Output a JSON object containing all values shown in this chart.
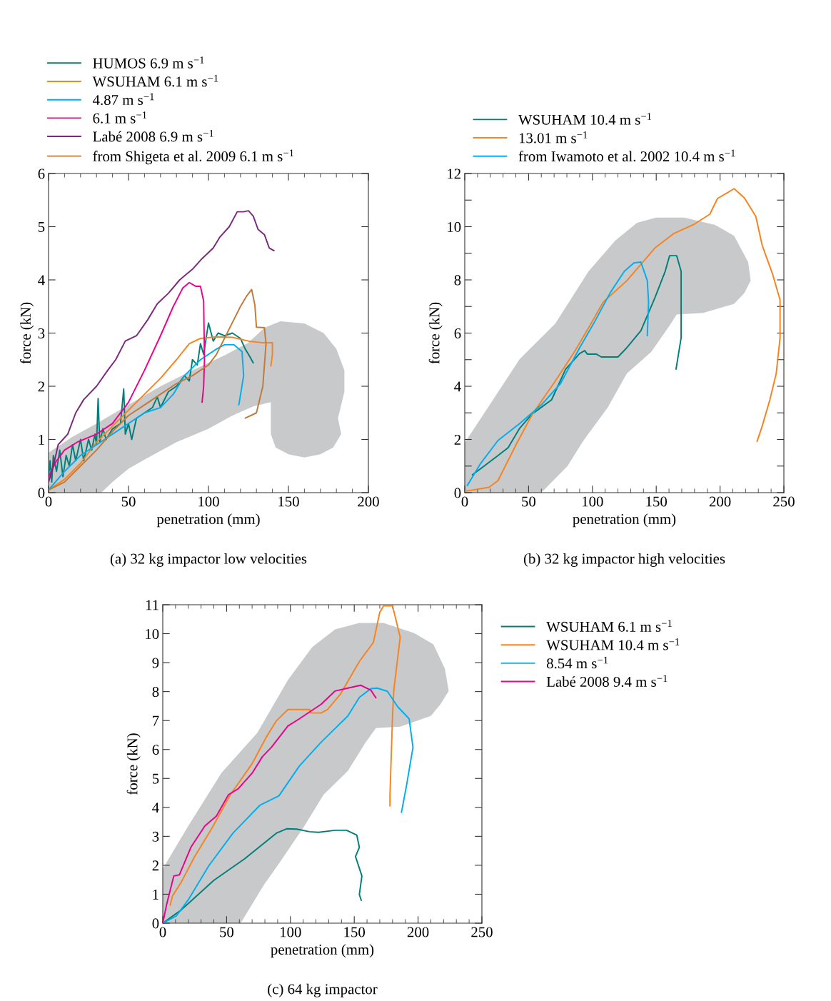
{
  "chart_data": [
    {
      "type": "line",
      "xlabel": "penetration (mm)",
      "ylabel": "force (kN)",
      "xlim": [
        0,
        200
      ],
      "ylim": [
        0,
        6
      ],
      "xticks": [
        0,
        50,
        100,
        150,
        200
      ],
      "yticks": [
        0,
        1,
        2,
        3,
        4,
        5,
        6
      ],
      "grid": false,
      "legend": "top",
      "annotations": [
        "(a) 32 kg impactor low velocities"
      ],
      "series": [
        {
          "type": "area",
          "color": "#c8c9cb",
          "x": [
            0,
            33,
            40,
            50,
            60,
            80,
            100,
            115,
            128,
            139,
            139,
            142,
            150,
            160,
            170,
            178,
            183,
            181,
            185,
            185,
            180,
            172,
            160,
            145,
            135,
            125,
            110,
            90,
            70,
            50,
            30,
            15,
            0
          ],
          "values": [
            0,
            0,
            0.2,
            0.45,
            0.62,
            0.95,
            1.2,
            1.45,
            1.62,
            1.7,
            1.1,
            0.85,
            0.72,
            0.66,
            0.72,
            0.85,
            1.1,
            1.4,
            1.9,
            2.3,
            2.7,
            3.0,
            3.18,
            3.22,
            3.1,
            2.82,
            2.58,
            2.3,
            2.0,
            1.65,
            1.3,
            1.05,
            0.75
          ]
        },
        {
          "name": "HUMOS 6.9 m s$^{−1}$",
          "color": "#007f7a",
          "x": [
            0,
            1,
            2,
            3,
            5,
            7,
            9,
            11,
            13,
            15,
            17,
            20,
            22,
            25,
            27,
            29,
            30,
            31,
            32,
            34,
            36,
            40,
            45,
            47,
            48,
            50,
            52,
            55,
            60,
            65,
            68,
            70,
            75,
            80,
            85,
            88,
            90,
            93,
            95,
            97,
            100,
            103,
            106,
            110,
            115,
            120,
            123,
            126,
            128
          ],
          "values": [
            0.3,
            0.6,
            0.2,
            0.7,
            0.4,
            0.8,
            0.3,
            0.7,
            0.5,
            0.9,
            0.6,
            1.0,
            0.6,
            1.0,
            0.8,
            1.1,
            0.9,
            1.77,
            0.95,
            1.2,
            1.0,
            1.2,
            1.3,
            1.95,
            1.1,
            1.3,
            1.0,
            1.4,
            1.5,
            1.6,
            1.8,
            1.6,
            1.9,
            2.0,
            2.2,
            2.1,
            2.5,
            2.4,
            2.8,
            2.6,
            3.19,
            2.85,
            3.0,
            2.95,
            3.0,
            2.9,
            2.7,
            2.55,
            2.44
          ]
        },
        {
          "name": "WSUHAM 6.1 m s$^{−1}$",
          "color": "#f7821e",
          "x": [
            0,
            10,
            20,
            30,
            40,
            50,
            60,
            70,
            80,
            88,
            95,
            105,
            115,
            125,
            133,
            140,
            140,
            139
          ],
          "values": [
            0.05,
            0.25,
            0.55,
            0.95,
            1.25,
            1.55,
            1.85,
            2.15,
            2.5,
            2.8,
            2.9,
            2.93,
            2.92,
            2.85,
            2.82,
            2.82,
            2.6,
            2.38
          ]
        },
        {
          "name": "4.87 m s$^{−1}$",
          "color": "#00aeef",
          "x": [
            0,
            10,
            20,
            30,
            45,
            60,
            70,
            78,
            85,
            95,
            105,
            110,
            116,
            121,
            122,
            119
          ],
          "values": [
            0.05,
            0.4,
            0.7,
            0.9,
            1.2,
            1.5,
            1.6,
            1.85,
            2.2,
            2.5,
            2.7,
            2.78,
            2.78,
            2.65,
            2.2,
            1.65
          ]
        },
        {
          "name": "6.1 m s$^{−1}$",
          "color": "#ec008c",
          "x": [
            0,
            5,
            10,
            18,
            30,
            40,
            50,
            60,
            70,
            78,
            84,
            88,
            92,
            95,
            97,
            97.5,
            97,
            96
          ],
          "values": [
            0.3,
            0.6,
            0.8,
            0.95,
            1.1,
            1.3,
            1.7,
            2.3,
            2.95,
            3.5,
            3.85,
            3.95,
            3.88,
            3.88,
            3.6,
            2.5,
            2.0,
            1.7
          ]
        },
        {
          "name": "Labé 2008 6.9 m s$^{−1}$",
          "color": "#7a2a7a",
          "x": [
            0,
            3,
            6,
            9,
            12,
            17,
            22,
            30,
            37,
            42,
            48,
            55,
            62,
            68,
            75,
            82,
            90,
            96,
            103,
            107,
            113,
            118,
            122,
            125,
            128,
            131,
            135,
            138,
            141
          ],
          "values": [
            0.2,
            0.5,
            0.9,
            1.0,
            1.1,
            1.5,
            1.75,
            2.0,
            2.3,
            2.5,
            2.85,
            2.95,
            3.25,
            3.55,
            3.75,
            4.0,
            4.2,
            4.4,
            4.6,
            4.8,
            5.0,
            5.28,
            5.28,
            5.3,
            5.2,
            4.95,
            4.85,
            4.6,
            4.55
          ]
        },
        {
          "name": "from Shigeta et al. 2009 6.1 m s$^{−1}$",
          "color": "#c07a3a",
          "x": [
            0,
            10,
            20,
            30,
            40,
            50,
            60,
            70,
            80,
            90,
            100,
            105,
            110,
            115,
            120,
            124,
            127,
            129,
            130,
            135,
            136,
            134,
            130,
            123
          ],
          "values": [
            0.05,
            0.2,
            0.5,
            0.8,
            1.15,
            1.45,
            1.65,
            1.85,
            2.05,
            2.2,
            2.4,
            2.6,
            2.9,
            3.2,
            3.5,
            3.7,
            3.82,
            3.53,
            3.11,
            3.1,
            2.8,
            2.0,
            1.5,
            1.4
          ]
        }
      ]
    },
    {
      "type": "line",
      "xlabel": "penetration (mm)",
      "ylabel": "force (kN)",
      "xlim": [
        0,
        250
      ],
      "ylim": [
        0,
        12
      ],
      "xticks": [
        0,
        50,
        100,
        150,
        200,
        250
      ],
      "yticks": [
        0,
        {
          "value": 1,
          "label": null
        },
        2,
        {
          "value": 3,
          "label": null
        },
        4,
        {
          "value": 5,
          "label": null
        },
        6,
        {
          "value": 7,
          "label": null
        },
        8,
        {
          "value": 9,
          "label": null
        },
        10,
        {
          "value": 11,
          "label": null
        },
        12
      ],
      "grid": false,
      "legend": "top",
      "annotations": [
        "(b) 32 kg impactor high velocities"
      ],
      "series": [
        {
          "type": "area",
          "color": "#c8c9cb",
          "x": [
            0,
            60,
            80.5,
            93,
            112,
            127,
            146,
            160,
            166,
            187,
            211,
            219,
            224,
            222,
            211,
            196,
            172,
            150,
            135,
            118,
            97,
            71,
            43,
            21,
            0
          ],
          "values": [
            0,
            0,
            1.0,
            1.96,
            3.2,
            4.48,
            5.29,
            6.25,
            6.7,
            6.76,
            7.1,
            7.5,
            7.97,
            8.67,
            9.66,
            10.07,
            10.34,
            10.34,
            10.15,
            9.48,
            8.32,
            6.36,
            5.02,
            3.41,
            1.88
          ]
        },
        {
          "name": "WSUHAM 10.4 m s$^{−1}$",
          "color": "#007f7a",
          "x": [
            6,
            13.5,
            24.6,
            34,
            43,
            52.6,
            68,
            79,
            90,
            94,
            96,
            103,
            107,
            120,
            127,
            138,
            149,
            157,
            160.5,
            166,
            169.5,
            169.5,
            165.5
          ],
          "values": [
            0.67,
            0.94,
            1.34,
            1.69,
            2.42,
            2.95,
            3.49,
            4.64,
            5.23,
            5.34,
            5.21,
            5.21,
            5.1,
            5.1,
            5.45,
            6.09,
            7.33,
            8.32,
            8.91,
            8.91,
            8.32,
            5.82,
            4.64
          ]
        },
        {
          "name": "13.01 m s$^{−1}$",
          "color": "#f7821e",
          "x": [
            0,
            19,
            26,
            41,
            53,
            71,
            86,
            99,
            108.5,
            127,
            149,
            164,
            180,
            192,
            198,
            211,
            219,
            228,
            233,
            241,
            247,
            247,
            244,
            239,
            233,
            229
          ],
          "values": [
            0.05,
            0.2,
            0.45,
            1.88,
            2.95,
            4.2,
            5.3,
            6.36,
            7.17,
            7.97,
            9.2,
            9.75,
            10.1,
            10.47,
            11.06,
            11.43,
            11.09,
            10.39,
            9.3,
            8.24,
            7.25,
            5.82,
            4.48,
            3.49,
            2.5,
            1.93
          ]
        },
        {
          "name": "from Iwamoto et al. 2002 10.4 m s$^{−1}$",
          "color": "#00aeef",
          "x": [
            2,
            12,
            26,
            43,
            60,
            75,
            90,
            101,
            114,
            125,
            132.5,
            138,
            143,
            144,
            143
          ],
          "values": [
            0.27,
            1.07,
            1.96,
            2.6,
            3.3,
            4.1,
            5.45,
            6.36,
            7.52,
            8.32,
            8.64,
            8.67,
            7.97,
            7.17,
            5.9
          ]
        }
      ]
    },
    {
      "type": "line",
      "xlabel": "penetration (mm)",
      "ylabel": "force (kN)",
      "xlim": [
        0,
        250
      ],
      "ylim": [
        0,
        11
      ],
      "xticks": [
        0,
        50,
        100,
        150,
        200,
        250
      ],
      "yticks": [
        0,
        1,
        2,
        3,
        4,
        5,
        6,
        7,
        8,
        9,
        10,
        11
      ],
      "grid": false,
      "legend": "right",
      "annotations": [
        "(c) 64 kg impactor"
      ],
      "series": [
        {
          "type": "area",
          "color": "#c8c9cb",
          "x": [
            0,
            61,
            79,
            92,
            111,
            126,
            145,
            159,
            167,
            186,
            210,
            217.5,
            224,
            221,
            212,
            197,
            173,
            154,
            135,
            117,
            98,
            74,
            46,
            20,
            0
          ],
          "values": [
            0,
            0,
            1.31,
            2.12,
            3.36,
            4.44,
            5.26,
            6.25,
            6.74,
            6.79,
            7.16,
            7.56,
            8.02,
            8.79,
            9.63,
            10.02,
            10.37,
            10.37,
            10.15,
            9.53,
            8.4,
            6.57,
            5.19,
            3.36,
            1.88
          ]
        },
        {
          "name": "WSUHAM 6.1 m s$^{−1}$",
          "color": "#007f7a",
          "x": [
            0,
            14,
            40,
            64,
            89,
            97,
            105,
            115,
            122,
            135,
            144,
            152,
            154,
            151,
            156,
            154,
            155.5
          ],
          "values": [
            0,
            0.44,
            1.48,
            2.22,
            3.11,
            3.26,
            3.25,
            3.16,
            3.14,
            3.21,
            3.21,
            3.04,
            2.62,
            2.3,
            1.63,
            0.99,
            0.79
          ]
        },
        {
          "name": "WSUHAM 10.4 m s$^{−1}$",
          "color": "#f7821e",
          "x": [
            5.8,
            7.6,
            14,
            25,
            38.5,
            53,
            70,
            81,
            89,
            98,
            115,
            116,
            124,
            129,
            139,
            154,
            165,
            170,
            173,
            180,
            186,
            181,
            180,
            178,
            178
          ],
          "values": [
            0.62,
            0.94,
            1.38,
            2.3,
            3.28,
            4.44,
            5.51,
            6.42,
            6.99,
            7.38,
            7.38,
            7.26,
            7.26,
            7.38,
            7.9,
            9.04,
            9.7,
            10.74,
            10.96,
            10.96,
            9.88,
            8.05,
            7.16,
            4.44,
            4.05
          ]
        },
        {
          "name": "8.54 m s$^{−1}$",
          "color": "#00aeef",
          "x": [
            0,
            10.6,
            20,
            36,
            55,
            76,
            91,
            107,
            124,
            145,
            154,
            163,
            168,
            176,
            184,
            193,
            196,
            191,
            187
          ],
          "values": [
            0,
            0.25,
            0.81,
            1.98,
            3.11,
            4.07,
            4.4,
            5.43,
            6.25,
            7.16,
            7.8,
            8.1,
            8.12,
            8.01,
            7.48,
            7.06,
            6.07,
            4.77,
            3.83
          ]
        },
        {
          "name": "Labé 2008 9.4 m s$^{−1}$",
          "color": "#ec008c",
          "x": [
            0,
            3,
            8.6,
            13,
            22,
            33,
            42,
            51.5,
            59,
            70,
            78,
            85,
            98,
            107,
            124,
            135,
            145,
            155,
            163,
            167
          ],
          "values": [
            0,
            0.64,
            1.63,
            1.67,
            2.62,
            3.36,
            3.7,
            4.44,
            4.64,
            5.18,
            5.75,
            6.07,
            6.81,
            7.06,
            7.56,
            8.02,
            8.12,
            8.22,
            8.05,
            7.78
          ]
        }
      ]
    }
  ]
}
